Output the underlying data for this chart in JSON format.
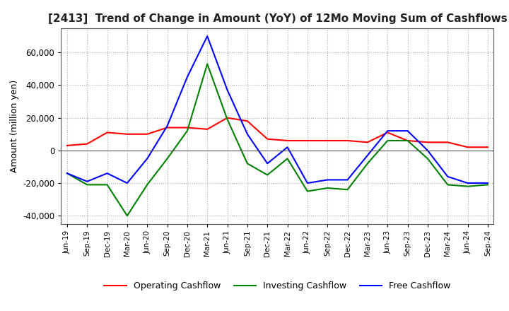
{
  "title": "[2413]  Trend of Change in Amount (YoY) of 12Mo Moving Sum of Cashflows",
  "ylabel": "Amount (million yen)",
  "ylim": [
    -45000,
    75000
  ],
  "yticks": [
    -40000,
    -20000,
    0,
    20000,
    40000,
    60000
  ],
  "x_labels": [
    "Jun-19",
    "Sep-19",
    "Dec-19",
    "Mar-20",
    "Jun-20",
    "Sep-20",
    "Dec-20",
    "Mar-21",
    "Jun-21",
    "Sep-21",
    "Dec-21",
    "Mar-22",
    "Jun-22",
    "Sep-22",
    "Dec-22",
    "Mar-23",
    "Jun-23",
    "Sep-23",
    "Dec-23",
    "Mar-24",
    "Jun-24",
    "Sep-24"
  ],
  "operating_cashflow": [
    3000,
    4000,
    11000,
    10000,
    10000,
    14000,
    14000,
    13000,
    20000,
    18000,
    7000,
    6000,
    6000,
    6000,
    6000,
    5000,
    11000,
    6000,
    5000,
    5000,
    2000,
    2000
  ],
  "investing_cashflow": [
    -14000,
    -21000,
    -21000,
    -40000,
    -21000,
    -5000,
    12000,
    53000,
    19000,
    -8000,
    -15000,
    -5000,
    -25000,
    -23000,
    -24000,
    -8000,
    6000,
    6000,
    -5000,
    -21000,
    -22000,
    -21000
  ],
  "free_cashflow": [
    -14000,
    -19000,
    -14000,
    -20000,
    -5000,
    15000,
    45000,
    70000,
    37000,
    10000,
    -8000,
    2000,
    -20000,
    -18000,
    -18000,
    -3000,
    12000,
    12000,
    0,
    -16000,
    -20000,
    -20000
  ],
  "operating_color": "#ff0000",
  "investing_color": "#008000",
  "free_color": "#0000ff",
  "background_color": "#ffffff",
  "grid_color": "#aaaaaa",
  "title_color": "#222222"
}
